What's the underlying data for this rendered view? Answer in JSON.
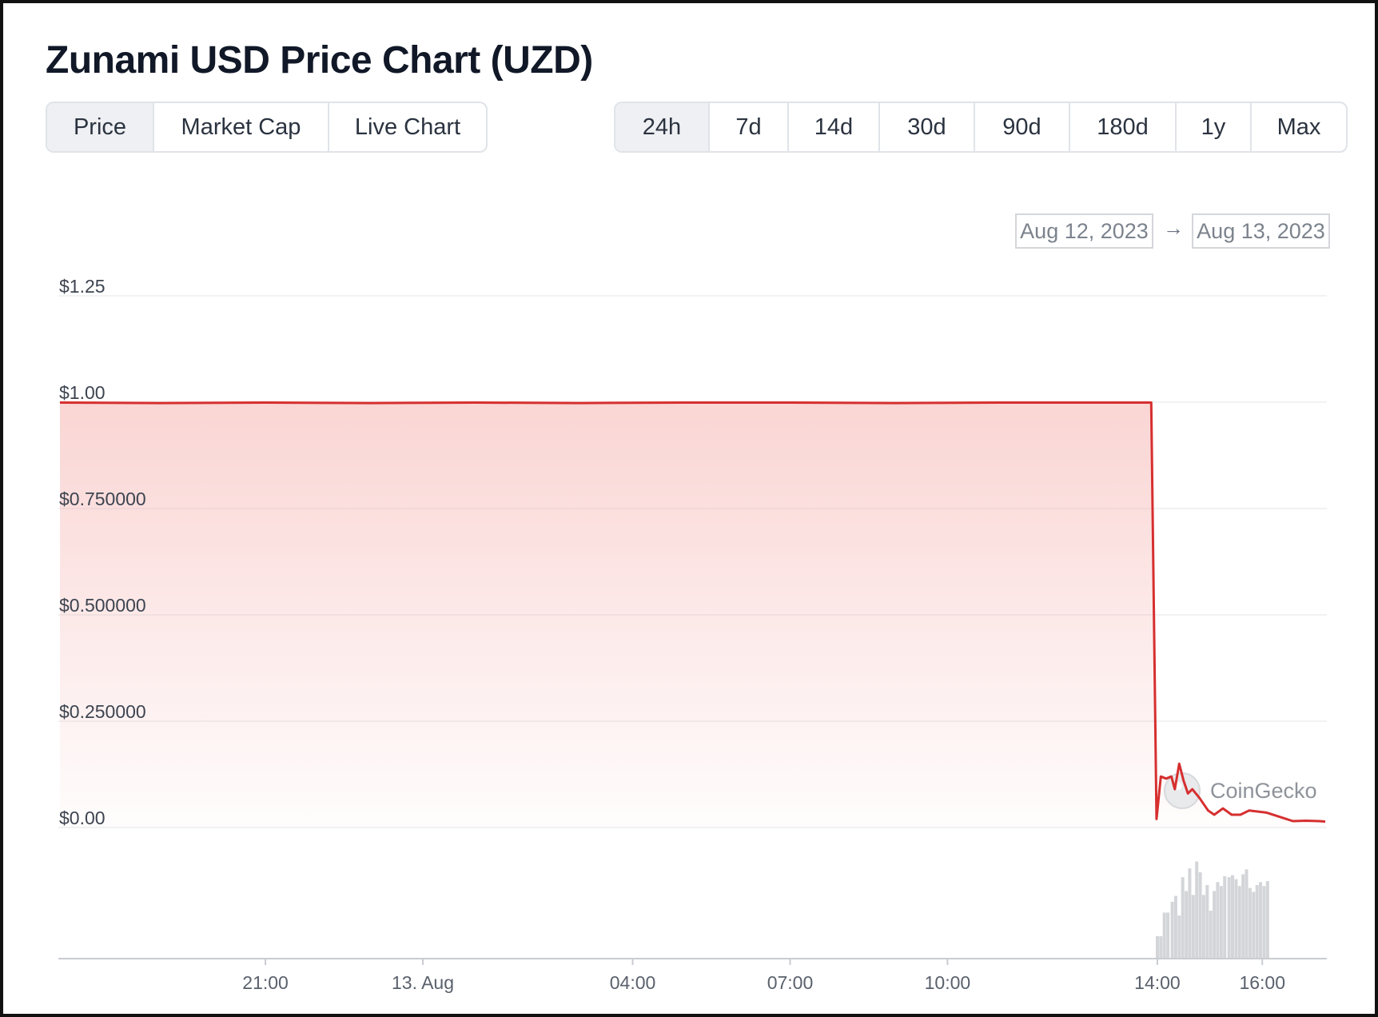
{
  "title": "Zunami USD Price Chart (UZD)",
  "tabs": [
    {
      "label": "Price",
      "active": true
    },
    {
      "label": "Market Cap",
      "active": false
    },
    {
      "label": "Live Chart",
      "active": false
    }
  ],
  "ranges": [
    {
      "label": "24h",
      "active": true
    },
    {
      "label": "7d",
      "active": false
    },
    {
      "label": "14d",
      "active": false
    },
    {
      "label": "30d",
      "active": false
    },
    {
      "label": "90d",
      "active": false
    },
    {
      "label": "180d",
      "active": false
    },
    {
      "label": "1y",
      "active": false
    },
    {
      "label": "Max",
      "active": false
    }
  ],
  "date_range": {
    "from": "Aug 12, 2023",
    "arrow": "→",
    "to": "Aug 13, 2023"
  },
  "watermark": "CoinGecko",
  "colors": {
    "line": "#d62f2f",
    "fill": "#f5b3b0",
    "volume": "#d3d5d9",
    "grid": "#eceef1"
  },
  "chart_data": {
    "type": "area",
    "ylim": [
      0,
      1.25
    ],
    "yticks": [
      {
        "value": 1.25,
        "label": "$1.25"
      },
      {
        "value": 1.0,
        "label": "$1.00"
      },
      {
        "value": 0.75,
        "label": "$0.750000"
      },
      {
        "value": 0.5,
        "label": "$0.500000"
      },
      {
        "value": 0.25,
        "label": "$0.250000"
      },
      {
        "value": 0.0,
        "label": "$0.00"
      }
    ],
    "xlim": [
      "2023-08-12T17:05",
      "2023-08-13T17:12"
    ],
    "xticks": [
      {
        "x": "2023-08-12T21:00",
        "label": "21:00"
      },
      {
        "x": "2023-08-13T00:00",
        "label": "13. Aug"
      },
      {
        "x": "2023-08-13T04:00",
        "label": "04:00"
      },
      {
        "x": "2023-08-13T07:00",
        "label": "07:00"
      },
      {
        "x": "2023-08-13T10:00",
        "label": "10:00"
      },
      {
        "x": "2023-08-13T14:00",
        "label": "14:00"
      },
      {
        "x": "2023-08-13T16:00",
        "label": "16:00"
      }
    ],
    "series": [
      {
        "points": [
          [
            "2023-08-12T17:05",
            0.999
          ],
          [
            "2023-08-12T19:00",
            0.998
          ],
          [
            "2023-08-12T21:00",
            0.999
          ],
          [
            "2023-08-12T23:00",
            0.998
          ],
          [
            "2023-08-13T01:00",
            0.999
          ],
          [
            "2023-08-13T03:00",
            0.998
          ],
          [
            "2023-08-13T05:00",
            0.999
          ],
          [
            "2023-08-13T07:00",
            0.999
          ],
          [
            "2023-08-13T09:00",
            0.998
          ],
          [
            "2023-08-13T11:00",
            0.999
          ],
          [
            "2023-08-13T13:20",
            0.999
          ],
          [
            "2023-08-13T13:53",
            0.999
          ],
          [
            "2023-08-13T13:59",
            0.02
          ],
          [
            "2023-08-13T14:04",
            0.12
          ],
          [
            "2023-08-13T14:10",
            0.115
          ],
          [
            "2023-08-13T14:16",
            0.12
          ],
          [
            "2023-08-13T14:20",
            0.09
          ],
          [
            "2023-08-13T14:25",
            0.15
          ],
          [
            "2023-08-13T14:30",
            0.11
          ],
          [
            "2023-08-13T14:35",
            0.08
          ],
          [
            "2023-08-13T14:40",
            0.09
          ],
          [
            "2023-08-13T14:48",
            0.07
          ],
          [
            "2023-08-13T14:58",
            0.04
          ],
          [
            "2023-08-13T15:05",
            0.03
          ],
          [
            "2023-08-13T15:15",
            0.045
          ],
          [
            "2023-08-13T15:25",
            0.03
          ],
          [
            "2023-08-13T15:35",
            0.03
          ],
          [
            "2023-08-13T15:45",
            0.04
          ],
          [
            "2023-08-13T16:05",
            0.035
          ],
          [
            "2023-08-13T16:20",
            0.025
          ],
          [
            "2023-08-13T16:35",
            0.015
          ],
          [
            "2023-08-13T16:50",
            0.016
          ],
          [
            "2023-08-13T17:05",
            0.015
          ],
          [
            "2023-08-13T17:12",
            0.014
          ]
        ]
      }
    ],
    "volume": [
      [
        "2023-08-13T14:00",
        0.22
      ],
      [
        "2023-08-13T14:04",
        0.22
      ],
      [
        "2023-08-13T14:08",
        0.46
      ],
      [
        "2023-08-13T14:12",
        0.46
      ],
      [
        "2023-08-13T14:17",
        0.57
      ],
      [
        "2023-08-13T14:21",
        0.63
      ],
      [
        "2023-08-13T14:25",
        0.43
      ],
      [
        "2023-08-13T14:29",
        0.82
      ],
      [
        "2023-08-13T14:33",
        0.68
      ],
      [
        "2023-08-13T14:37",
        0.91
      ],
      [
        "2023-08-13T14:41",
        0.64
      ],
      [
        "2023-08-13T14:45",
        0.98
      ],
      [
        "2023-08-13T14:49",
        0.87
      ],
      [
        "2023-08-13T14:53",
        0.64
      ],
      [
        "2023-08-13T14:57",
        0.74
      ],
      [
        "2023-08-13T15:01",
        0.48
      ],
      [
        "2023-08-13T15:05",
        0.68
      ],
      [
        "2023-08-13T15:09",
        0.77
      ],
      [
        "2023-08-13T15:13",
        0.73
      ],
      [
        "2023-08-13T15:17",
        0.83
      ],
      [
        "2023-08-13T15:22",
        0.82
      ],
      [
        "2023-08-13T15:26",
        0.84
      ],
      [
        "2023-08-13T15:30",
        0.8
      ],
      [
        "2023-08-13T15:34",
        0.73
      ],
      [
        "2023-08-13T15:38",
        0.85
      ],
      [
        "2023-08-13T15:42",
        0.9
      ],
      [
        "2023-08-13T15:46",
        0.71
      ],
      [
        "2023-08-13T15:50",
        0.67
      ],
      [
        "2023-08-13T15:54",
        0.74
      ],
      [
        "2023-08-13T15:58",
        0.77
      ],
      [
        "2023-08-13T16:02",
        0.73
      ],
      [
        "2023-08-13T16:06",
        0.78
      ]
    ]
  }
}
